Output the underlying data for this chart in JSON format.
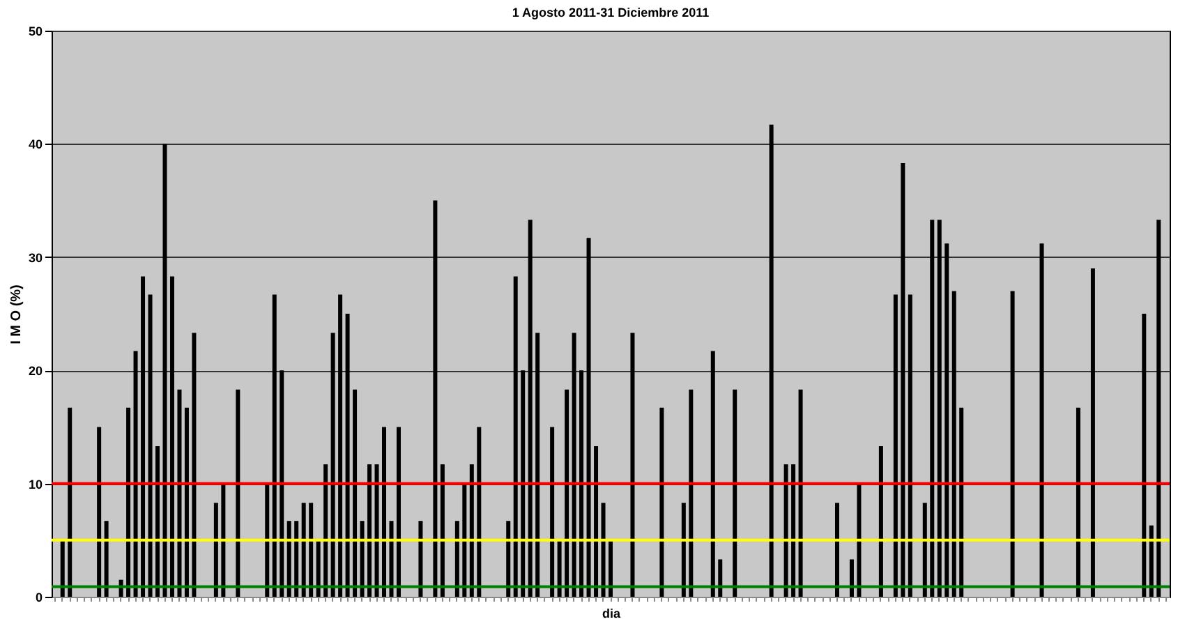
{
  "chart_data": {
    "type": "bar",
    "title": "1 Agosto 2011-31 Diciembre 2011",
    "xlabel": "dia",
    "ylabel": "I M O (%)",
    "categories": [
      null,
      null,
      null,
      null,
      null,
      null,
      null,
      null,
      null,
      null,
      null,
      null,
      null,
      null,
      null,
      null,
      null,
      null,
      null,
      null,
      null,
      null,
      null,
      null,
      null,
      null,
      null,
      null,
      null,
      null,
      null,
      null,
      null,
      null,
      null,
      null,
      null,
      null,
      null,
      null,
      null,
      null,
      null,
      null,
      null,
      null,
      null,
      null,
      null,
      null,
      null,
      null,
      null,
      null,
      null,
      null,
      null,
      null,
      null,
      null,
      null,
      null,
      null,
      null,
      null,
      null,
      null,
      null,
      null,
      null,
      null,
      null,
      null,
      null,
      null,
      null,
      null,
      null,
      null,
      null,
      null,
      null,
      null,
      null,
      null,
      null,
      null,
      null,
      null,
      null,
      null,
      null,
      null,
      null,
      null,
      null,
      null,
      null,
      null,
      null,
      null,
      null,
      null,
      null,
      null,
      null,
      null,
      null,
      null,
      null,
      null,
      null,
      null,
      null,
      null,
      null,
      null,
      null,
      null,
      null,
      null,
      null,
      null,
      null,
      null,
      null,
      null,
      null,
      null,
      null,
      null,
      null,
      null,
      null,
      null,
      null,
      null,
      null,
      null,
      null,
      null,
      null,
      null,
      null,
      null,
      null,
      null,
      null,
      null,
      null,
      null,
      null,
      null
    ],
    "values": [
      null,
      5,
      16.7,
      null,
      null,
      null,
      15,
      6.7,
      null,
      1.5,
      16.7,
      21.7,
      28.3,
      26.7,
      13.3,
      40,
      28.3,
      18.3,
      16.7,
      23.3,
      null,
      null,
      8.3,
      10,
      null,
      18.3,
      null,
      null,
      null,
      10,
      26.7,
      20,
      6.7,
      6.7,
      8.3,
      8.3,
      5,
      11.7,
      23.3,
      26.7,
      25,
      18.3,
      6.7,
      11.7,
      11.7,
      15,
      6.7,
      15,
      null,
      null,
      6.7,
      null,
      35,
      11.7,
      null,
      6.7,
      10,
      11.7,
      15,
      null,
      null,
      null,
      6.7,
      28.3,
      20,
      33.3,
      23.3,
      null,
      15,
      5,
      18.3,
      23.3,
      20,
      31.7,
      13.3,
      8.3,
      5,
      null,
      null,
      23.3,
      null,
      null,
      null,
      16.7,
      null,
      null,
      8.3,
      18.3,
      null,
      null,
      21.7,
      3.3,
      null,
      18.3,
      null,
      null,
      null,
      null,
      41.7,
      null,
      11.7,
      11.7,
      18.3,
      null,
      null,
      null,
      null,
      8.3,
      null,
      3.3,
      10,
      null,
      null,
      13.3,
      null,
      26.7,
      38.3,
      26.7,
      null,
      8.3,
      33.3,
      33.3,
      31.2,
      27,
      16.7,
      null,
      null,
      null,
      null,
      null,
      null,
      27,
      null,
      null,
      null,
      31.2,
      null,
      null,
      null,
      null,
      16.7,
      null,
      29,
      null,
      null,
      null,
      null,
      null,
      null,
      25,
      6.3,
      33.3,
      null
    ],
    "color": "#000000",
    "ylim": [
      0,
      50
    ],
    "yticks": [
      0,
      10,
      20,
      30,
      40,
      50
    ],
    "grid": "y",
    "tick_labels": "y",
    "ref_lines": [
      {
        "axis": "y",
        "value": 10,
        "color": "#ff0000"
      },
      {
        "axis": "y",
        "value": 5,
        "color": "#ffff00"
      },
      {
        "axis": "y",
        "value": 0.9,
        "color": "#008000"
      }
    ]
  }
}
